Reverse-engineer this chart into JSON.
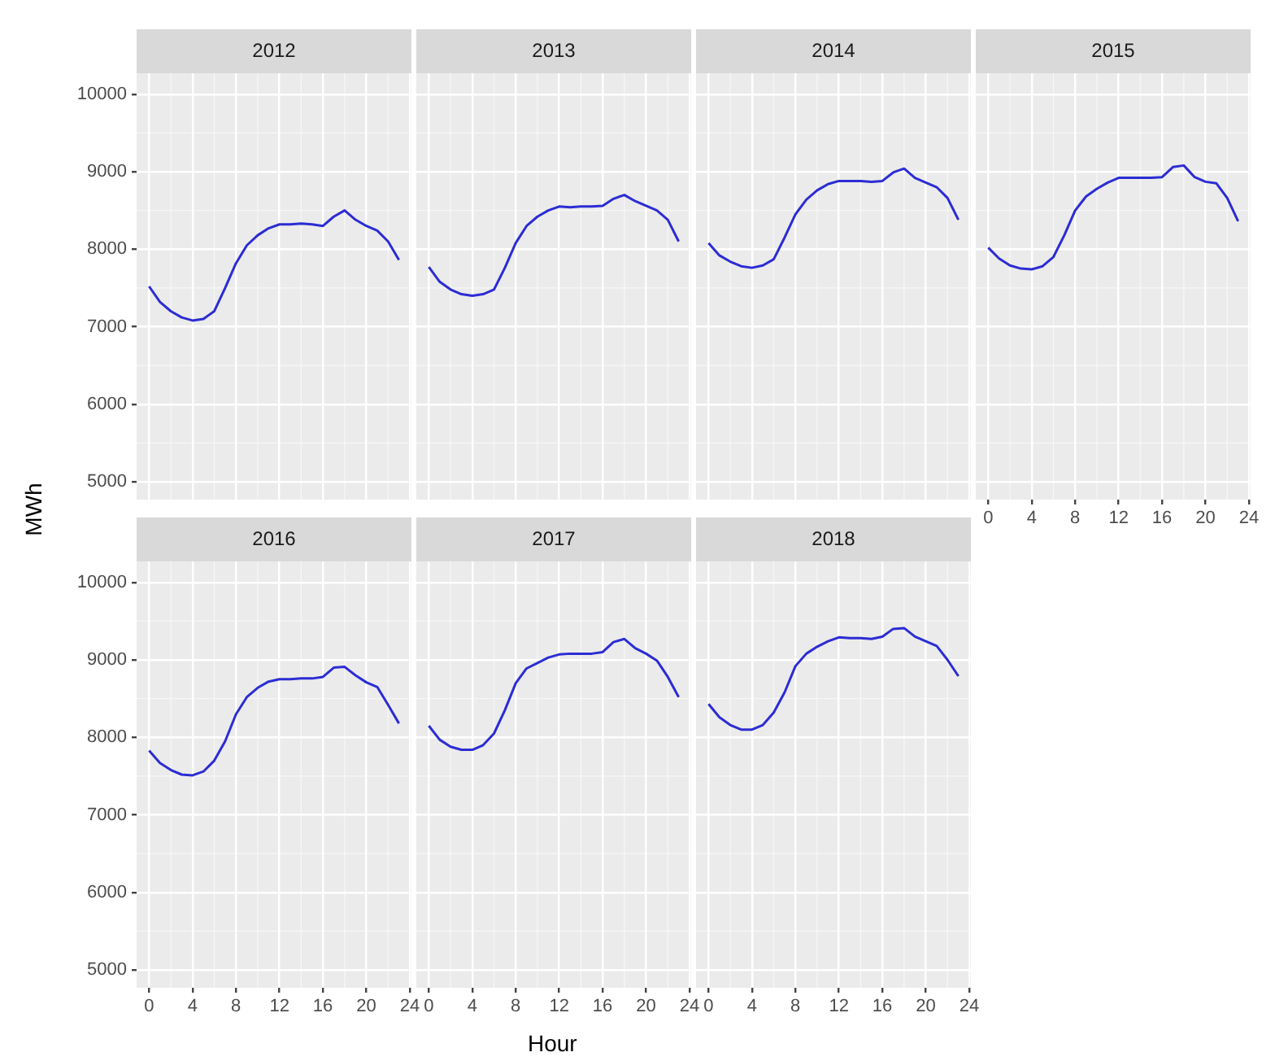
{
  "chart_data": [
    {
      "type": "line",
      "title": "2012",
      "ylabel": "MWh",
      "x": [
        0,
        1,
        2,
        3,
        4,
        5,
        6,
        7,
        8,
        9,
        10,
        11,
        12,
        13,
        14,
        15,
        16,
        17,
        18,
        19,
        20,
        21,
        22,
        23
      ],
      "series": [
        {
          "color": "#2c2cd4",
          "values": [
            7520,
            7320,
            7200,
            7120,
            7080,
            7100,
            7200,
            7500,
            7820,
            8050,
            8180,
            8270,
            8320,
            8320,
            8330,
            8320,
            8300,
            8420,
            8500,
            8380,
            8300,
            8240,
            8100,
            7860
          ]
        }
      ],
      "xlim": [
        -1.15,
        24.15
      ],
      "xticks": [
        0,
        4,
        8,
        12,
        16,
        20,
        24
      ],
      "ylim": [
        4770,
        10270
      ],
      "yticks": [
        5000,
        6000,
        7000,
        8000,
        9000,
        10000
      ],
      "grid": true,
      "tick_labels": "y"
    },
    {
      "type": "line",
      "title": "2013",
      "x": [
        0,
        1,
        2,
        3,
        4,
        5,
        6,
        7,
        8,
        9,
        10,
        11,
        12,
        13,
        14,
        15,
        16,
        17,
        18,
        19,
        20,
        21,
        22,
        23
      ],
      "series": [
        {
          "color": "#2c2cd4",
          "values": [
            7770,
            7580,
            7480,
            7420,
            7400,
            7420,
            7480,
            7760,
            8080,
            8300,
            8420,
            8500,
            8550,
            8540,
            8550,
            8550,
            8560,
            8650,
            8700,
            8620,
            8560,
            8500,
            8380,
            8100
          ]
        }
      ],
      "xlim": [
        -1.15,
        24.15
      ],
      "xticks": [
        0,
        4,
        8,
        12,
        16,
        20,
        24
      ],
      "ylim": [
        4770,
        10270
      ],
      "yticks": [
        5000,
        6000,
        7000,
        8000,
        9000,
        10000
      ],
      "grid": true,
      "tick_labels": false
    },
    {
      "type": "line",
      "title": "2014",
      "x": [
        0,
        1,
        2,
        3,
        4,
        5,
        6,
        7,
        8,
        9,
        10,
        11,
        12,
        13,
        14,
        15,
        16,
        17,
        18,
        19,
        20,
        21,
        22,
        23
      ],
      "series": [
        {
          "color": "#2c2cd4",
          "values": [
            8080,
            7920,
            7840,
            7780,
            7760,
            7790,
            7870,
            8150,
            8450,
            8640,
            8760,
            8840,
            8880,
            8880,
            8880,
            8870,
            8880,
            8990,
            9040,
            8920,
            8860,
            8800,
            8660,
            8380
          ]
        }
      ],
      "xlim": [
        -1.15,
        24.15
      ],
      "xticks": [
        0,
        4,
        8,
        12,
        16,
        20,
        24
      ],
      "ylim": [
        4770,
        10270
      ],
      "yticks": [
        5000,
        6000,
        7000,
        8000,
        9000,
        10000
      ],
      "grid": true,
      "tick_labels": false
    },
    {
      "type": "line",
      "title": "2015",
      "x": [
        0,
        1,
        2,
        3,
        4,
        5,
        6,
        7,
        8,
        9,
        10,
        11,
        12,
        13,
        14,
        15,
        16,
        17,
        18,
        19,
        20,
        21,
        22,
        23
      ],
      "series": [
        {
          "color": "#2c2cd4",
          "values": [
            8020,
            7880,
            7790,
            7750,
            7740,
            7780,
            7900,
            8180,
            8500,
            8680,
            8780,
            8860,
            8920,
            8920,
            8920,
            8920,
            8930,
            9060,
            9080,
            8930,
            8870,
            8850,
            8660,
            8360
          ]
        }
      ],
      "xlim": [
        -1.15,
        24.15
      ],
      "xticks": [
        0,
        4,
        8,
        12,
        16,
        20,
        24
      ],
      "ylim": [
        4770,
        10270
      ],
      "yticks": [
        5000,
        6000,
        7000,
        8000,
        9000,
        10000
      ],
      "grid": true,
      "tick_labels": "x"
    },
    {
      "type": "line",
      "title": "2016",
      "x": [
        0,
        1,
        2,
        3,
        4,
        5,
        6,
        7,
        8,
        9,
        10,
        11,
        12,
        13,
        14,
        15,
        16,
        17,
        18,
        19,
        20,
        21,
        22,
        23
      ],
      "series": [
        {
          "color": "#2c2cd4",
          "values": [
            7830,
            7670,
            7580,
            7520,
            7510,
            7560,
            7700,
            7950,
            8300,
            8520,
            8640,
            8720,
            8750,
            8750,
            8760,
            8760,
            8780,
            8900,
            8910,
            8800,
            8710,
            8650,
            8420,
            8180
          ]
        }
      ],
      "xlim": [
        -1.15,
        24.15
      ],
      "xticks": [
        0,
        4,
        8,
        12,
        16,
        20,
        24
      ],
      "ylim": [
        4770,
        10270
      ],
      "yticks": [
        5000,
        6000,
        7000,
        8000,
        9000,
        10000
      ],
      "grid": true
    },
    {
      "type": "line",
      "title": "2017",
      "xlabel": "Hour",
      "x": [
        0,
        1,
        2,
        3,
        4,
        5,
        6,
        7,
        8,
        9,
        10,
        11,
        12,
        13,
        14,
        15,
        16,
        17,
        18,
        19,
        20,
        21,
        22,
        23
      ],
      "series": [
        {
          "color": "#2c2cd4",
          "values": [
            8150,
            7970,
            7880,
            7840,
            7840,
            7900,
            8050,
            8350,
            8700,
            8890,
            8960,
            9030,
            9070,
            9080,
            9080,
            9080,
            9100,
            9230,
            9270,
            9150,
            9080,
            8990,
            8780,
            8520
          ]
        }
      ],
      "xlim": [
        -1.15,
        24.15
      ],
      "xticks": [
        0,
        4,
        8,
        12,
        16,
        20,
        24
      ],
      "ylim": [
        4770,
        10270
      ],
      "yticks": [
        5000,
        6000,
        7000,
        8000,
        9000,
        10000
      ],
      "grid": true,
      "tick_labels": "x"
    },
    {
      "type": "line",
      "title": "2018",
      "x": [
        0,
        1,
        2,
        3,
        4,
        5,
        6,
        7,
        8,
        9,
        10,
        11,
        12,
        13,
        14,
        15,
        16,
        17,
        18,
        19,
        20,
        21,
        22,
        23
      ],
      "series": [
        {
          "color": "#2c2cd4",
          "values": [
            8430,
            8260,
            8160,
            8100,
            8100,
            8160,
            8320,
            8580,
            8920,
            9080,
            9170,
            9240,
            9290,
            9280,
            9280,
            9270,
            9300,
            9400,
            9410,
            9300,
            9240,
            9180,
            9000,
            8790
          ]
        }
      ],
      "xlim": [
        -1.15,
        24.15
      ],
      "xticks": [
        0,
        4,
        8,
        12,
        16,
        20,
        24
      ],
      "ylim": [
        4770,
        10270
      ],
      "yticks": [
        5000,
        6000,
        7000,
        8000,
        9000,
        10000
      ],
      "grid": true,
      "tick_labels": "x"
    }
  ]
}
